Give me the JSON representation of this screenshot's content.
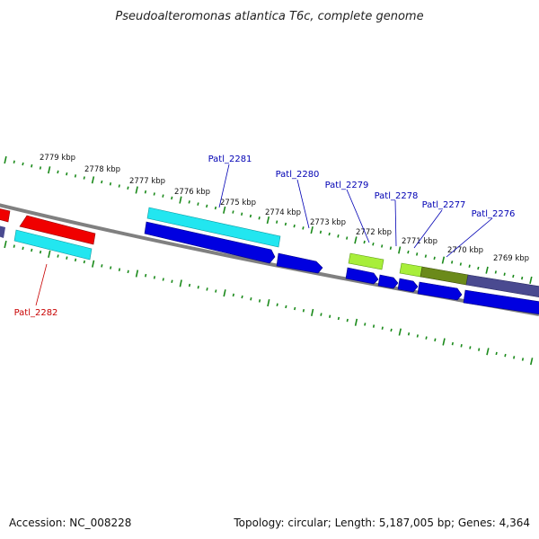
{
  "title": "Pseudoalteromonas atlantica T6c, complete genome",
  "footer": {
    "accession": "Accession: NC_008228",
    "summary": "Topology: circular; Length: 5,187,005 bp; Genes: 4,364"
  },
  "colors": {
    "backbone": "#808080",
    "ticks": "#1a8a1a",
    "label_forward": "#0000b4",
    "label_reverse": "#c80000",
    "gene_blue": "#0000e0",
    "gene_cyan": "#22e6f0",
    "gene_red": "#f00000",
    "gene_lime": "#a8ee3a",
    "gene_olive": "#6b8a1a",
    "gene_slate": "#4a4a90"
  },
  "kbp_labels": [
    "2779 kbp",
    "2778 kbp",
    "2777 kbp",
    "2776 kbp",
    "2775 kbp",
    "2774 kbp",
    "2773 kbp",
    "2772 kbp",
    "2771 kbp",
    "2770 kbp",
    "2769 kbp"
  ],
  "gene_labels": [
    {
      "name": "Patl_2281",
      "strand": "forward"
    },
    {
      "name": "Patl_2280",
      "strand": "forward"
    },
    {
      "name": "Patl_2279",
      "strand": "forward"
    },
    {
      "name": "Patl_2278",
      "strand": "forward"
    },
    {
      "name": "Patl_2277",
      "strand": "forward"
    },
    {
      "name": "Patl_2276",
      "strand": "forward"
    },
    {
      "name": "Patl_2282",
      "strand": "reverse"
    }
  ]
}
